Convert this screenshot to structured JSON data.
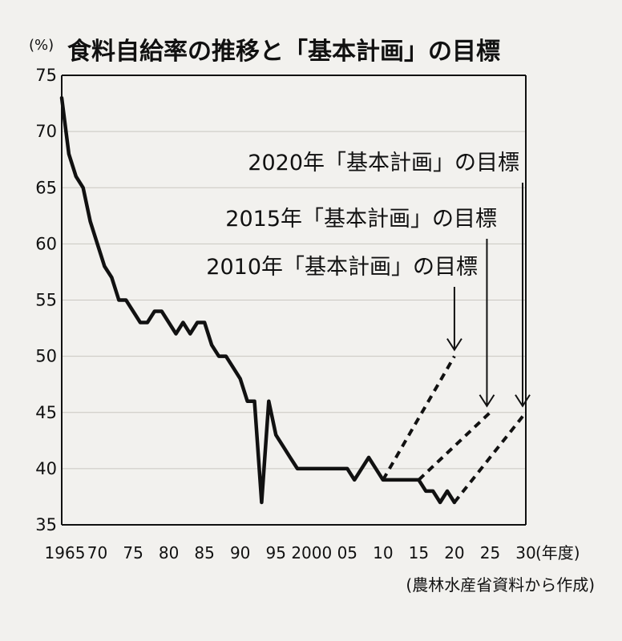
{
  "chart_data": {
    "type": "line",
    "title": "食料自給率の推移と「基本計画」の目標",
    "ylabel": "(%)",
    "xlabel": "(年度)",
    "source": "(農林水産省資料から作成)",
    "xlim": [
      1965,
      2030
    ],
    "ylim": [
      35,
      75
    ],
    "grid": true,
    "y_ticks": [
      "35",
      "40",
      "45",
      "50",
      "55",
      "60",
      "65",
      "70",
      "75"
    ],
    "x_ticks": [
      {
        "x": 1965,
        "label": "1965"
      },
      {
        "x": 1970,
        "label": "70"
      },
      {
        "x": 1975,
        "label": "75"
      },
      {
        "x": 1980,
        "label": "80"
      },
      {
        "x": 1985,
        "label": "85"
      },
      {
        "x": 1990,
        "label": "90"
      },
      {
        "x": 1995,
        "label": "95"
      },
      {
        "x": 2000,
        "label": "2000"
      },
      {
        "x": 2005,
        "label": "05"
      },
      {
        "x": 2010,
        "label": "10"
      },
      {
        "x": 2015,
        "label": "15"
      },
      {
        "x": 2020,
        "label": "20"
      },
      {
        "x": 2025,
        "label": "25"
      },
      {
        "x": 2030,
        "label": "30"
      }
    ],
    "series": [
      {
        "x": [
          1965,
          1966,
          1967,
          1968,
          1969,
          1970,
          1971,
          1972,
          1973,
          1974,
          1975,
          1976,
          1977,
          1978,
          1979,
          1980,
          1981,
          1982,
          1983,
          1984,
          1985,
          1986,
          1987,
          1988,
          1989,
          1990,
          1991,
          1992,
          1993,
          1994,
          1995,
          1996,
          1997,
          1998,
          1999,
          2000,
          2001,
          2002,
          2003,
          2004,
          2005,
          2006,
          2007,
          2008,
          2009,
          2010,
          2011,
          2012,
          2013,
          2014,
          2015,
          2016,
          2017,
          2018,
          2019,
          2020
        ],
        "values": [
          73,
          68,
          66,
          65,
          62,
          60,
          58,
          57,
          55,
          55,
          54,
          53,
          53,
          54,
          54,
          53,
          52,
          53,
          52,
          53,
          53,
          51,
          50,
          50,
          49,
          48,
          46,
          46,
          37,
          46,
          43,
          42,
          41,
          40,
          40,
          40,
          40,
          40,
          40,
          40,
          40,
          39,
          40,
          41,
          40,
          39,
          39,
          39,
          39,
          39,
          39,
          38,
          38,
          37,
          38,
          37
        ]
      }
    ],
    "targets": [
      {
        "label": "2010年「基本計画」の目標",
        "x": [
          2010,
          2020
        ],
        "values": [
          39,
          50
        ]
      },
      {
        "label": "2015年「基本計画」の目標",
        "x": [
          2015,
          2025
        ],
        "values": [
          39,
          45
        ]
      },
      {
        "label": "2020年「基本計画」の目標",
        "x": [
          2020,
          2030
        ],
        "values": [
          37,
          45
        ]
      }
    ]
  }
}
